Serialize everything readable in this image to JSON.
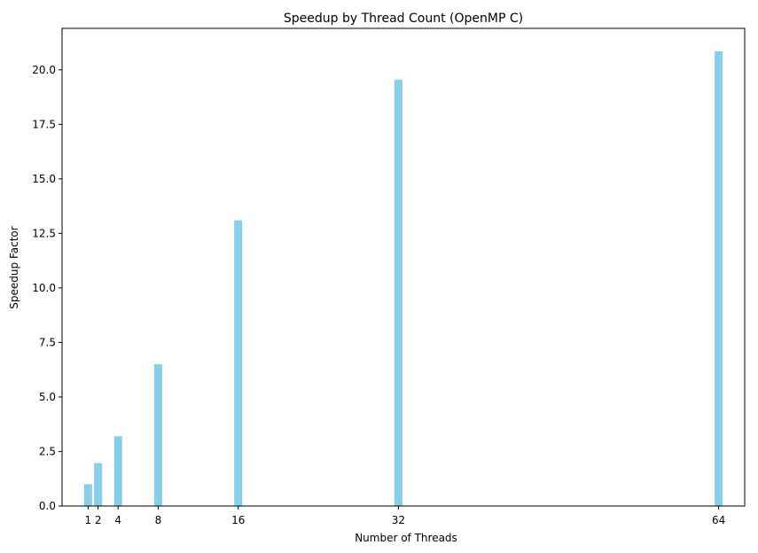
{
  "chart_data": {
    "type": "bar",
    "title": "Speedup by Thread Count (OpenMP C)",
    "xlabel": "Number of Threads",
    "ylabel": "Speedup Factor",
    "x": [
      1,
      2,
      4,
      8,
      16,
      32,
      64
    ],
    "values": [
      1.0,
      1.97,
      3.2,
      6.5,
      13.1,
      19.55,
      20.85
    ],
    "x_ticks": [
      1,
      2,
      4,
      8,
      16,
      32,
      64
    ],
    "y_ticks": [
      "0.0",
      "2.5",
      "5.0",
      "7.5",
      "10.0",
      "12.5",
      "15.0",
      "17.5",
      "20.0"
    ],
    "xlim": [
      -1.6,
      66.6
    ],
    "ylim": [
      0,
      21.9
    ],
    "bar_width_data": 0.8,
    "bar_color": "#87ceeb",
    "grid": false,
    "legend": "none"
  }
}
